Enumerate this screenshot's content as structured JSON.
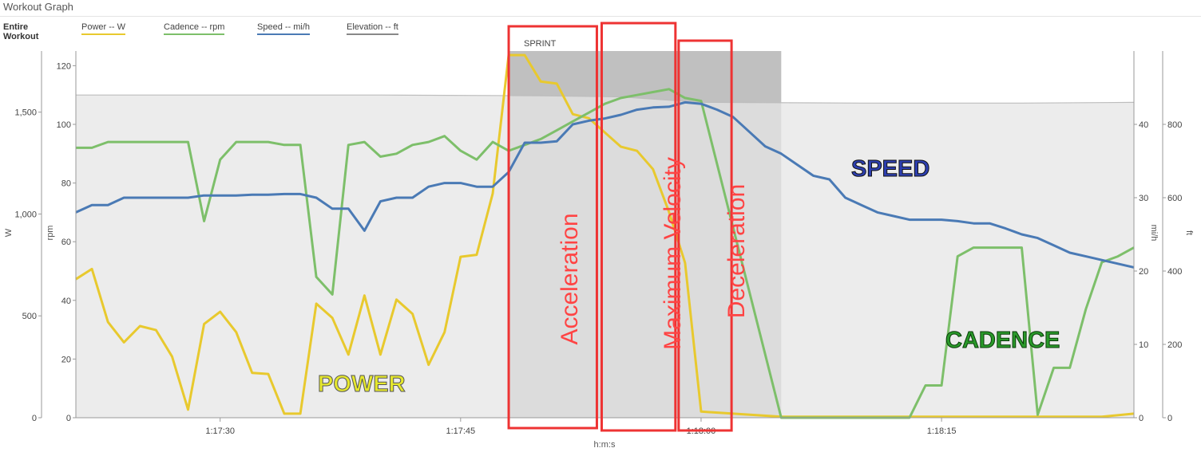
{
  "window": {
    "title": "Workout Graph"
  },
  "legend": {
    "scope": "Entire Workout",
    "items": [
      {
        "label": "Power  -- W",
        "color": "#e8c92e"
      },
      {
        "label": "Cadence  -- rpm",
        "color": "#7dbf6a"
      },
      {
        "label": "Speed  -- mi/h",
        "color": "#4a7ab5"
      },
      {
        "label": "Elevation  -- ft",
        "color": "#888888"
      }
    ]
  },
  "chart_data": {
    "type": "line",
    "xlabel": "h:m:s",
    "x_ticks": [
      "1:17:30",
      "1:17:45",
      "1:18:00",
      "1:18:15"
    ],
    "x_tick_seconds": [
      4650,
      4665,
      4680,
      4695
    ],
    "x_range_seconds": [
      4641,
      4707
    ],
    "axes": {
      "power": {
        "label": "W",
        "ticks": [
          "0",
          "500",
          "1,000",
          "1,500"
        ],
        "range": [
          0,
          1800
        ]
      },
      "cadence": {
        "label": "rpm",
        "ticks": [
          "0",
          "20",
          "40",
          "60",
          "80",
          "100",
          "120"
        ],
        "range": [
          0,
          125
        ]
      },
      "speed": {
        "label": "mi/h",
        "ticks": [
          "0",
          "10",
          "20",
          "30",
          "40"
        ],
        "range": [
          0,
          50
        ]
      },
      "elevation": {
        "label": "ft",
        "ticks": [
          "0",
          "200",
          "400",
          "600",
          "800"
        ],
        "range": [
          0,
          1000
        ]
      }
    },
    "highlight": {
      "label": "SPRINT",
      "x_start": 4668,
      "x_end": 4685,
      "color": "#c0c0c0"
    },
    "series": [
      {
        "name": "Elevation",
        "axis": "elevation",
        "color": "#bdbdbd",
        "fill": "#e6e6e6",
        "x": [
          4641,
          4650,
          4660,
          4670,
          4675,
          4680,
          4690,
          4700,
          4707
        ],
        "values": [
          880,
          880,
          880,
          878,
          875,
          860,
          858,
          858,
          860
        ]
      },
      {
        "name": "Power",
        "axis": "power",
        "color": "#e8c92e",
        "x": [
          4641,
          4642,
          4643,
          4644,
          4645,
          4646,
          4647,
          4648,
          4649,
          4650,
          4651,
          4652,
          4653,
          4654,
          4655,
          4656,
          4657,
          4658,
          4659,
          4660,
          4661,
          4662,
          4663,
          4664,
          4665,
          4666,
          4667,
          4668,
          4669,
          4670,
          4671,
          4672,
          4673,
          4674,
          4675,
          4676,
          4677,
          4678,
          4679,
          4680,
          4685,
          4690,
          4695,
          4700,
          4705,
          4707
        ],
        "values": [
          680,
          730,
          470,
          370,
          450,
          430,
          300,
          40,
          460,
          520,
          420,
          220,
          215,
          20,
          20,
          560,
          490,
          310,
          600,
          310,
          580,
          510,
          260,
          420,
          790,
          800,
          1100,
          1780,
          1780,
          1650,
          1640,
          1490,
          1470,
          1400,
          1330,
          1310,
          1220,
          1010,
          760,
          30,
          5,
          5,
          5,
          5,
          5,
          20
        ]
      },
      {
        "name": "Cadence",
        "axis": "cadence",
        "color": "#7dbf6a",
        "x": [
          4641,
          4642,
          4643,
          4644,
          4645,
          4646,
          4647,
          4648,
          4649,
          4650,
          4651,
          4652,
          4653,
          4654,
          4655,
          4656,
          4657,
          4658,
          4659,
          4660,
          4661,
          4662,
          4663,
          4664,
          4665,
          4666,
          4667,
          4668,
          4669,
          4670,
          4671,
          4672,
          4673,
          4674,
          4675,
          4676,
          4677,
          4678,
          4679,
          4680,
          4685,
          4689,
          4690,
          4691,
          4692,
          4693,
          4694,
          4695,
          4696,
          4697,
          4698,
          4699,
          4700,
          4701,
          4702,
          4703,
          4704,
          4705,
          4706,
          4707
        ],
        "values": [
          92,
          92,
          94,
          94,
          94,
          94,
          94,
          94,
          67,
          88,
          94,
          94,
          94,
          93,
          93,
          48,
          42,
          93,
          94,
          89,
          90,
          93,
          94,
          96,
          91,
          88,
          94,
          91,
          93,
          95,
          98,
          101,
          104,
          107,
          109,
          110,
          111,
          112,
          109,
          108,
          0,
          0,
          0,
          0,
          0,
          0,
          11,
          11,
          55,
          58,
          58,
          58,
          58,
          1,
          17,
          17,
          37,
          53,
          55,
          58
        ]
      },
      {
        "name": "Speed",
        "axis": "speed",
        "color": "#4a7ab5",
        "x": [
          4641,
          4642,
          4643,
          4644,
          4645,
          4646,
          4647,
          4648,
          4649,
          4650,
          4651,
          4652,
          4653,
          4654,
          4655,
          4656,
          4657,
          4658,
          4659,
          4660,
          4661,
          4662,
          4663,
          4664,
          4665,
          4666,
          4667,
          4668,
          4669,
          4670,
          4671,
          4672,
          4673,
          4674,
          4675,
          4676,
          4677,
          4678,
          4679,
          4680,
          4681,
          4682,
          4683,
          4684,
          4685,
          4686,
          4687,
          4688,
          4689,
          4690,
          4691,
          4692,
          4693,
          4694,
          4695,
          4696,
          4697,
          4698,
          4699,
          4700,
          4701,
          4702,
          4703,
          4704,
          4705,
          4706,
          4707
        ],
        "values": [
          28,
          29,
          29,
          30,
          30,
          30,
          30,
          30,
          30.3,
          30.3,
          30.3,
          30.4,
          30.4,
          30.5,
          30.5,
          30,
          28.5,
          28.5,
          25.5,
          29.5,
          30,
          30,
          31.5,
          32,
          32,
          31.5,
          31.5,
          33.5,
          37.5,
          37.5,
          37.7,
          40,
          40.5,
          40.8,
          41.3,
          42,
          42.3,
          42.4,
          43,
          42.8,
          42,
          41,
          39,
          37,
          36,
          34.5,
          33,
          32.5,
          30,
          29,
          28,
          27.5,
          27,
          27,
          27,
          26.8,
          26.5,
          26.5,
          25.8,
          25,
          24.5,
          23.5,
          22.5,
          22,
          21.5,
          21,
          20.5
        ]
      }
    ],
    "annotations": [
      {
        "text": "POWER",
        "color": "#e6e82d",
        "stroke": "#555555"
      },
      {
        "text": "SPEED",
        "color": "#2d3fb0",
        "stroke": "#111111"
      },
      {
        "text": "CADENCE",
        "color": "#2a9a2a",
        "stroke": "#0a3a0a"
      },
      {
        "text": "Acceleration",
        "color": "#ff4444"
      },
      {
        "text": "Maximum Velocity",
        "color": "#ff4444"
      },
      {
        "text": "Deceleration",
        "color": "#ff4444"
      }
    ]
  }
}
